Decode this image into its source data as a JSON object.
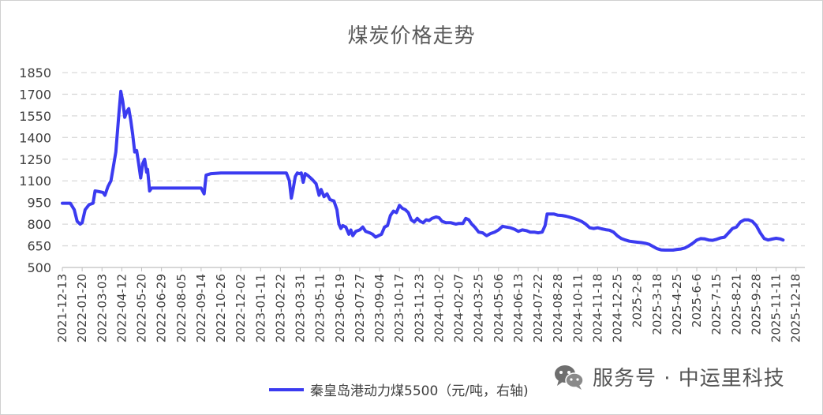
{
  "chart_data": {
    "type": "line",
    "title": "煤炭价格走势",
    "ylim": [
      500,
      1850
    ],
    "yticks": [
      500,
      650,
      800,
      950,
      1100,
      1250,
      1400,
      1550,
      1700,
      1850
    ],
    "grid": "horizontal dashed",
    "legend_position": "bottom",
    "x_tick_labels": [
      "2021-12-13",
      "2022-01-20",
      "2022-03-03",
      "2022-04-12",
      "2022-05-20",
      "2022-06-29",
      "2022-08-05",
      "2022-09-14",
      "2022-10-26",
      "2022-12-02",
      "2023-01-11",
      "2023-02-22",
      "2023-03-31",
      "2023-05-11",
      "2023-06-19",
      "2023-07-27",
      "2023-09-04",
      "2023-10-17",
      "2023-11-23",
      "2024-01-02",
      "2024-02-07",
      "2024-03-25",
      "2024-05-06",
      "2024-06-13",
      "2024-07-22",
      "2024-08-28",
      "2024-10-11",
      "2024-11-18",
      "2024-12-25",
      "2025-2-8",
      "2025-3-18",
      "2025-4-25",
      "2025-6-6",
      "2025-7-15",
      "2025-8-21",
      "2025-9-28",
      "2025-11-11",
      "2025-12-18"
    ],
    "series": [
      {
        "name": "秦皇岛港动力煤5500（元/吨，右轴)",
        "color": "#3b3bf0",
        "values": [
          [
            0,
            945
          ],
          [
            0.4,
            945
          ],
          [
            0.6,
            900
          ],
          [
            0.75,
            820
          ],
          [
            0.9,
            800
          ],
          [
            1.0,
            810
          ],
          [
            1.15,
            900
          ],
          [
            1.35,
            935
          ],
          [
            1.55,
            945
          ],
          [
            1.65,
            1030
          ],
          [
            1.85,
            1025
          ],
          [
            2.05,
            1020
          ],
          [
            2.15,
            1000
          ],
          [
            2.3,
            1060
          ],
          [
            2.45,
            1100
          ],
          [
            2.55,
            1180
          ],
          [
            2.7,
            1300
          ],
          [
            2.85,
            1560
          ],
          [
            2.95,
            1720
          ],
          [
            3.05,
            1650
          ],
          [
            3.15,
            1540
          ],
          [
            3.25,
            1580
          ],
          [
            3.35,
            1600
          ],
          [
            3.45,
            1520
          ],
          [
            3.55,
            1420
          ],
          [
            3.65,
            1300
          ],
          [
            3.75,
            1310
          ],
          [
            3.85,
            1220
          ],
          [
            3.95,
            1120
          ],
          [
            4.05,
            1220
          ],
          [
            4.15,
            1250
          ],
          [
            4.25,
            1160
          ],
          [
            4.3,
            1180
          ],
          [
            4.4,
            1030
          ],
          [
            4.5,
            1050
          ],
          [
            5.0,
            1050
          ],
          [
            6.0,
            1050
          ],
          [
            6.8,
            1050
          ],
          [
            7.0,
            1050
          ],
          [
            7.15,
            1010
          ],
          [
            7.25,
            1140
          ],
          [
            7.5,
            1150
          ],
          [
            8.0,
            1155
          ],
          [
            9.0,
            1155
          ],
          [
            10.0,
            1155
          ],
          [
            11.0,
            1155
          ],
          [
            11.3,
            1155
          ],
          [
            11.45,
            1100
          ],
          [
            11.55,
            980
          ],
          [
            11.65,
            1050
          ],
          [
            11.75,
            1130
          ],
          [
            11.85,
            1155
          ],
          [
            11.95,
            1150
          ],
          [
            12.05,
            1155
          ],
          [
            12.15,
            1090
          ],
          [
            12.25,
            1150
          ],
          [
            12.4,
            1135
          ],
          [
            12.6,
            1110
          ],
          [
            12.8,
            1080
          ],
          [
            12.95,
            1000
          ],
          [
            13.05,
            1040
          ],
          [
            13.2,
            990
          ],
          [
            13.35,
            1010
          ],
          [
            13.5,
            970
          ],
          [
            13.7,
            960
          ],
          [
            13.85,
            900
          ],
          [
            13.95,
            800
          ],
          [
            14.05,
            770
          ],
          [
            14.15,
            790
          ],
          [
            14.3,
            780
          ],
          [
            14.45,
            730
          ],
          [
            14.55,
            760
          ],
          [
            14.65,
            720
          ],
          [
            14.8,
            750
          ],
          [
            15.0,
            760
          ],
          [
            15.15,
            780
          ],
          [
            15.3,
            750
          ],
          [
            15.5,
            740
          ],
          [
            15.65,
            730
          ],
          [
            15.8,
            710
          ],
          [
            15.95,
            720
          ],
          [
            16.1,
            730
          ],
          [
            16.25,
            780
          ],
          [
            16.4,
            790
          ],
          [
            16.55,
            860
          ],
          [
            16.7,
            890
          ],
          [
            16.85,
            880
          ],
          [
            17.0,
            930
          ],
          [
            17.15,
            910
          ],
          [
            17.3,
            900
          ],
          [
            17.45,
            880
          ],
          [
            17.6,
            830
          ],
          [
            17.75,
            815
          ],
          [
            17.9,
            840
          ],
          [
            18.05,
            820
          ],
          [
            18.2,
            810
          ],
          [
            18.35,
            830
          ],
          [
            18.5,
            825
          ],
          [
            18.65,
            840
          ],
          [
            18.85,
            850
          ],
          [
            19.0,
            845
          ],
          [
            19.15,
            820
          ],
          [
            19.35,
            810
          ],
          [
            19.6,
            810
          ],
          [
            19.85,
            800
          ],
          [
            20.0,
            805
          ],
          [
            20.2,
            805
          ],
          [
            20.35,
            840
          ],
          [
            20.5,
            830
          ],
          [
            20.65,
            800
          ],
          [
            20.8,
            780
          ],
          [
            21.0,
            745
          ],
          [
            21.2,
            740
          ],
          [
            21.4,
            720
          ],
          [
            21.6,
            735
          ],
          [
            21.8,
            745
          ],
          [
            22.0,
            760
          ],
          [
            22.2,
            785
          ],
          [
            22.4,
            780
          ],
          [
            22.6,
            775
          ],
          [
            22.8,
            765
          ],
          [
            23.0,
            750
          ],
          [
            23.2,
            760
          ],
          [
            23.4,
            755
          ],
          [
            23.6,
            745
          ],
          [
            23.8,
            745
          ],
          [
            24.0,
            740
          ],
          [
            24.2,
            745
          ],
          [
            24.35,
            790
          ],
          [
            24.45,
            870
          ],
          [
            24.6,
            870
          ],
          [
            24.8,
            870
          ],
          [
            25.0,
            862
          ],
          [
            25.2,
            860
          ],
          [
            25.4,
            855
          ],
          [
            25.6,
            848
          ],
          [
            25.8,
            840
          ],
          [
            26.0,
            830
          ],
          [
            26.2,
            818
          ],
          [
            26.4,
            800
          ],
          [
            26.6,
            775
          ],
          [
            26.8,
            770
          ],
          [
            27.0,
            775
          ],
          [
            27.2,
            768
          ],
          [
            27.4,
            762
          ],
          [
            27.6,
            758
          ],
          [
            27.8,
            745
          ],
          [
            28.0,
            718
          ],
          [
            28.2,
            700
          ],
          [
            28.4,
            690
          ],
          [
            28.6,
            682
          ],
          [
            28.8,
            678
          ],
          [
            29.0,
            675
          ],
          [
            29.2,
            672
          ],
          [
            29.4,
            668
          ],
          [
            29.6,
            660
          ],
          [
            29.8,
            645
          ],
          [
            30.0,
            630
          ],
          [
            30.2,
            622
          ],
          [
            30.4,
            620
          ],
          [
            30.6,
            620
          ],
          [
            30.8,
            620
          ],
          [
            31.0,
            625
          ],
          [
            31.2,
            628
          ],
          [
            31.4,
            635
          ],
          [
            31.6,
            650
          ],
          [
            31.8,
            668
          ],
          [
            32.0,
            690
          ],
          [
            32.2,
            700
          ],
          [
            32.4,
            698
          ],
          [
            32.6,
            690
          ],
          [
            32.8,
            688
          ],
          [
            33.0,
            695
          ],
          [
            33.2,
            705
          ],
          [
            33.4,
            710
          ],
          [
            33.6,
            740
          ],
          [
            33.8,
            770
          ],
          [
            34.0,
            780
          ],
          [
            34.2,
            815
          ],
          [
            34.4,
            830
          ],
          [
            34.6,
            830
          ],
          [
            34.8,
            820
          ],
          [
            35.0,
            790
          ],
          [
            35.2,
            740
          ],
          [
            35.4,
            700
          ],
          [
            35.6,
            690
          ],
          [
            35.8,
            697
          ],
          [
            36.0,
            702
          ],
          [
            36.2,
            698
          ],
          [
            36.35,
            690
          ]
        ]
      }
    ]
  },
  "watermark": {
    "icon": "wechat-icon",
    "text": "服务号 · 中运里科技"
  }
}
